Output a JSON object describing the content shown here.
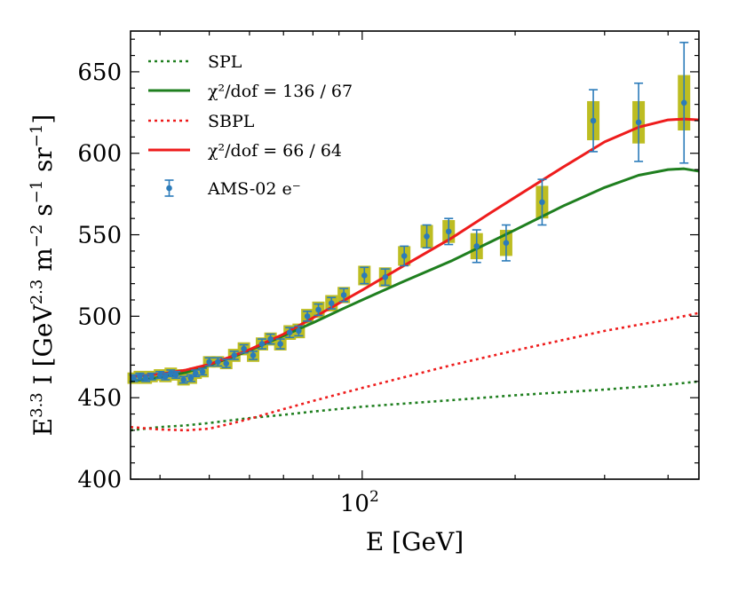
{
  "chart_data": {
    "type": "scatter",
    "x_scale": "log",
    "xlim": [
      35,
      460
    ],
    "ylim": [
      400,
      675
    ],
    "xlabel_text": "E [GeV]",
    "ylabel": {
      "base": "E",
      "exp1": "3.3",
      "mid": " I [GeV",
      "exp2": "2.3",
      "unit_m": " m",
      "exp3": "−2",
      "unit_s": " s",
      "exp4": "−1",
      "unit_sr": " sr",
      "exp5": "−1",
      "close": "]"
    },
    "x_tick_major": {
      "value": 100,
      "base": "10",
      "exp": "2"
    },
    "y_ticks": [
      400,
      450,
      500,
      550,
      600,
      650
    ],
    "colors": {
      "green": "#1f7f1f",
      "red": "#ee1c1c",
      "data": "#2b7bba",
      "band": "#bdbd22"
    },
    "series": [
      {
        "name": "SPL",
        "style": "dotted",
        "color": "green",
        "x": [
          35,
          40,
          45,
          50,
          60,
          70,
          80,
          100,
          150,
          200,
          300,
          400,
          460
        ],
        "y": [
          430,
          432,
          433,
          434.5,
          437.5,
          439.5,
          441.5,
          444.5,
          448.5,
          451.5,
          455,
          458,
          460
        ]
      },
      {
        "name": "χ²/dof = 136 / 67",
        "style": "solid",
        "color": "green",
        "x": [
          35,
          40,
          45,
          50,
          55,
          60,
          70,
          80,
          90,
          100,
          120,
          150,
          180,
          200,
          250,
          300,
          350,
          400,
          430,
          460
        ],
        "y": [
          460,
          462.5,
          465.5,
          470,
          474.5,
          479,
          488,
          496,
          503.5,
          510,
          521,
          534,
          546,
          553,
          568,
          579,
          586.5,
          590,
          590.5,
          589
        ]
      },
      {
        "name": "SBPL",
        "style": "dotted",
        "color": "red",
        "x": [
          35,
          40,
          45,
          50,
          55,
          60,
          70,
          80,
          100,
          150,
          200,
          300,
          400,
          460
        ],
        "y": [
          432,
          430.5,
          430,
          431,
          434,
          437,
          443,
          448,
          456,
          470,
          479,
          491,
          498,
          502
        ]
      },
      {
        "name": "χ²/dof = 66 / 64",
        "style": "solid",
        "color": "red",
        "x": [
          35,
          40,
          45,
          50,
          55,
          60,
          70,
          80,
          90,
          100,
          120,
          150,
          180,
          200,
          250,
          300,
          350,
          400,
          430,
          460
        ],
        "y": [
          463,
          464.5,
          467,
          470.5,
          475,
          479.5,
          489,
          499,
          508,
          516,
          530.5,
          548,
          564,
          573,
          592,
          607,
          616,
          620.5,
          621,
          620.5
        ]
      }
    ],
    "data_points": {
      "name": "AMS-02 e⁻",
      "points": [
        {
          "x": 35.5,
          "y": 462,
          "err": 2,
          "band": 3.5
        },
        {
          "x": 36.5,
          "y": 463,
          "err": 2,
          "band": 3.5
        },
        {
          "x": 37.5,
          "y": 462,
          "err": 2,
          "band": 3.5
        },
        {
          "x": 38.5,
          "y": 463,
          "err": 2,
          "band": 3.5
        },
        {
          "x": 40,
          "y": 464,
          "err": 2,
          "band": 3.5
        },
        {
          "x": 41,
          "y": 463,
          "err": 2,
          "band": 3.5
        },
        {
          "x": 42,
          "y": 465,
          "err": 2,
          "band": 3.5
        },
        {
          "x": 43,
          "y": 464,
          "err": 2,
          "band": 3.5
        },
        {
          "x": 44.5,
          "y": 461,
          "err": 2,
          "band": 3.5
        },
        {
          "x": 46,
          "y": 462,
          "err": 2,
          "band": 3.5
        },
        {
          "x": 47,
          "y": 465,
          "err": 2,
          "band": 3.5
        },
        {
          "x": 48.5,
          "y": 466,
          "err": 2,
          "band": 3.5
        },
        {
          "x": 50,
          "y": 472,
          "err": 2.5,
          "band": 3.5
        },
        {
          "x": 52,
          "y": 472,
          "err": 2.5,
          "band": 3.5
        },
        {
          "x": 54,
          "y": 471,
          "err": 2.5,
          "band": 3.5
        },
        {
          "x": 56,
          "y": 476,
          "err": 2.5,
          "band": 4
        },
        {
          "x": 58.5,
          "y": 480,
          "err": 2.5,
          "band": 4
        },
        {
          "x": 61,
          "y": 476,
          "err": 2.5,
          "band": 4
        },
        {
          "x": 63.5,
          "y": 483,
          "err": 3,
          "band": 4
        },
        {
          "x": 66,
          "y": 486,
          "err": 3,
          "band": 4
        },
        {
          "x": 69,
          "y": 483,
          "err": 3,
          "band": 4
        },
        {
          "x": 72,
          "y": 490,
          "err": 3,
          "band": 4.5
        },
        {
          "x": 75,
          "y": 491,
          "err": 3,
          "band": 4.5
        },
        {
          "x": 78,
          "y": 500,
          "err": 3,
          "band": 4.5
        },
        {
          "x": 82,
          "y": 504,
          "err": 3.5,
          "band": 5
        },
        {
          "x": 87,
          "y": 508,
          "err": 3.5,
          "band": 5
        },
        {
          "x": 92,
          "y": 513,
          "err": 4,
          "band": 5
        },
        {
          "x": 101,
          "y": 525,
          "err": 5,
          "band": 6
        },
        {
          "x": 111,
          "y": 524,
          "err": 5,
          "band": 6
        },
        {
          "x": 121,
          "y": 537,
          "err": 6,
          "band": 6
        },
        {
          "x": 134,
          "y": 549,
          "err": 7,
          "band": 7
        },
        {
          "x": 148,
          "y": 552,
          "err": 8,
          "band": 7
        },
        {
          "x": 168,
          "y": 543,
          "err": 10,
          "band": 8
        },
        {
          "x": 192,
          "y": 545,
          "err": 11,
          "band": 8
        },
        {
          "x": 226,
          "y": 570,
          "err": 14,
          "band": 10
        },
        {
          "x": 285,
          "y": 620,
          "err": 19,
          "band": 12
        },
        {
          "x": 350,
          "y": 619,
          "err": 24,
          "band": 13
        },
        {
          "x": 430,
          "y": 631,
          "err": 37,
          "band": 17
        }
      ]
    },
    "legend": {
      "position": "top-left",
      "entries": [
        {
          "label": "SPL"
        },
        {
          "label": "χ²/dof = 136 / 67"
        },
        {
          "label": "SBPL"
        },
        {
          "label": "χ²/dof = 66 / 64"
        },
        {
          "label": "AMS-02 e⁻"
        }
      ]
    }
  }
}
